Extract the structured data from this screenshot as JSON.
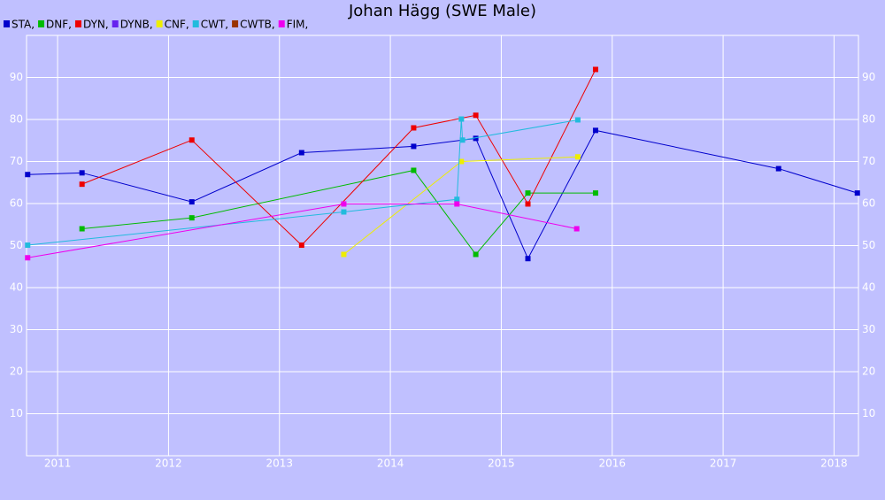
{
  "chart_data": {
    "type": "line",
    "title": "Johan Hägg (SWE Male)",
    "xlim": [
      2010.72,
      2018.22
    ],
    "xticks": [
      2011,
      2012,
      2013,
      2014,
      2015,
      2016,
      2017,
      2018
    ],
    "ylim": [
      0,
      100
    ],
    "yticks": [
      10,
      20,
      30,
      40,
      50,
      60,
      70,
      80,
      90
    ],
    "grid": true,
    "series": [
      {
        "name": "STA,",
        "color": "#0000cc",
        "x": [
          2010.73,
          2011.22,
          2012.21,
          2013.2,
          2014.21,
          2014.77,
          2015.24,
          2015.85,
          2017.5,
          2018.21
        ],
        "values": [
          66.9,
          67.3,
          60.4,
          72.1,
          73.6,
          75.5,
          46.9,
          77.4,
          68.3,
          62.5
        ]
      },
      {
        "name": "DNF,",
        "color": "#00bb00",
        "x": [
          2011.22,
          2012.21,
          2014.21,
          2014.77,
          2015.24,
          2015.85
        ],
        "values": [
          54.0,
          56.6,
          67.9,
          47.9,
          62.5,
          62.5
        ]
      },
      {
        "name": "DYN,",
        "color": "#ee0000",
        "x": [
          2011.22,
          2012.21,
          2013.2,
          2014.21,
          2014.77,
          2015.24,
          2015.85
        ],
        "values": [
          64.6,
          75.1,
          50.1,
          78.0,
          81.0,
          59.9,
          91.9
        ]
      },
      {
        "name": "DYNB,",
        "color": "#6622ee",
        "x": [],
        "values": []
      },
      {
        "name": "CNF,",
        "color": "#eeee00",
        "x": [
          2013.58,
          2014.64,
          2015.69
        ],
        "values": [
          47.9,
          70.0,
          71.1
        ]
      },
      {
        "name": "CWT,",
        "color": "#22bbdd",
        "x": [
          2010.73,
          2013.58,
          2014.6,
          2014.64,
          2014.65,
          2015.69
        ],
        "values": [
          50.1,
          58.0,
          61.0,
          80.1,
          75.1,
          79.9
        ]
      },
      {
        "name": "CWTB,",
        "color": "#993300",
        "x": [],
        "values": []
      },
      {
        "name": "FIM,",
        "color": "#ee00ee",
        "x": [
          2010.73,
          2013.58,
          2014.6,
          2015.68
        ],
        "values": [
          47.1,
          59.9,
          59.9,
          54.0
        ]
      }
    ]
  }
}
